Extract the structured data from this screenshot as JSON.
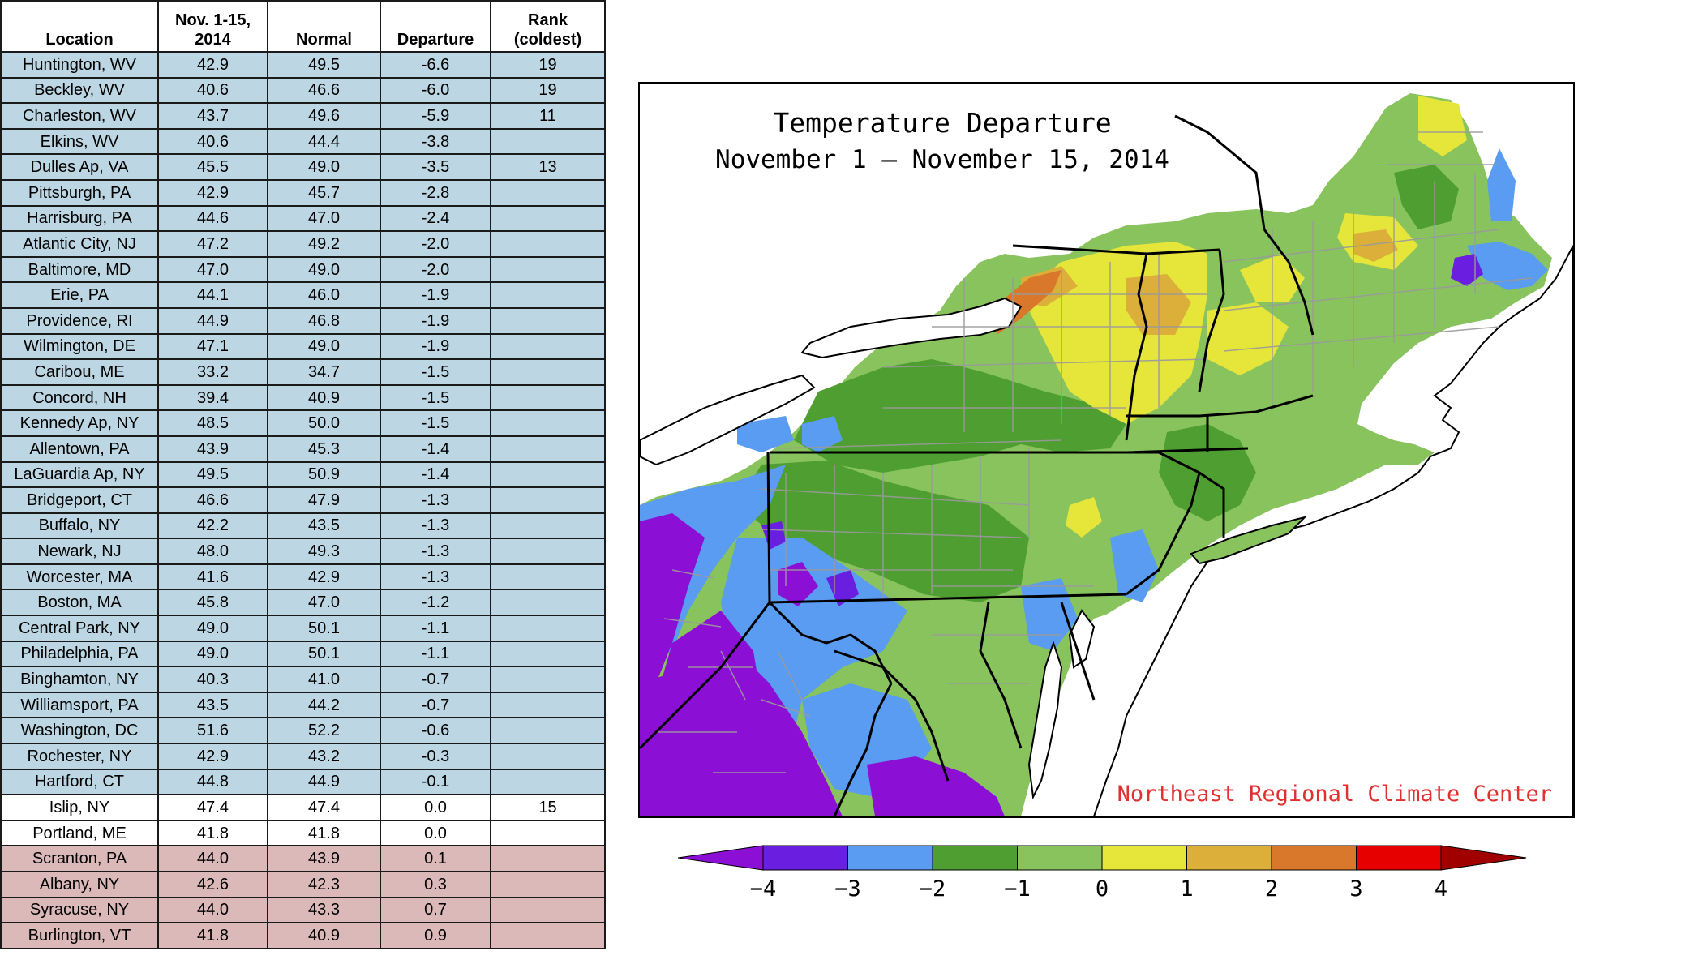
{
  "table": {
    "headers": {
      "location": "Location",
      "period_line1": "Nov. 1-15,",
      "period_line2": "2014",
      "normal": "Normal",
      "departure": "Departure",
      "rank_line1": "Rank",
      "rank_line2": "(coldest)"
    },
    "row_colors": {
      "cold": "#bcd7e3",
      "neutral": "#ffffff",
      "warm": "#dcb9b9"
    },
    "rows": [
      {
        "location": "Huntington, WV",
        "value": "42.9",
        "normal": "49.5",
        "departure": "-6.6",
        "rank": "19",
        "tone": "cold"
      },
      {
        "location": "Beckley, WV",
        "value": "40.6",
        "normal": "46.6",
        "departure": "-6.0",
        "rank": "19",
        "tone": "cold"
      },
      {
        "location": "Charleston, WV",
        "value": "43.7",
        "normal": "49.6",
        "departure": "-5.9",
        "rank": "11",
        "tone": "cold"
      },
      {
        "location": "Elkins, WV",
        "value": "40.6",
        "normal": "44.4",
        "departure": "-3.8",
        "rank": "",
        "tone": "cold"
      },
      {
        "location": "Dulles Ap, VA",
        "value": "45.5",
        "normal": "49.0",
        "departure": "-3.5",
        "rank": "13",
        "tone": "cold"
      },
      {
        "location": "Pittsburgh, PA",
        "value": "42.9",
        "normal": "45.7",
        "departure": "-2.8",
        "rank": "",
        "tone": "cold"
      },
      {
        "location": "Harrisburg, PA",
        "value": "44.6",
        "normal": "47.0",
        "departure": "-2.4",
        "rank": "",
        "tone": "cold"
      },
      {
        "location": "Atlantic City, NJ",
        "value": "47.2",
        "normal": "49.2",
        "departure": "-2.0",
        "rank": "",
        "tone": "cold"
      },
      {
        "location": "Baltimore, MD",
        "value": "47.0",
        "normal": "49.0",
        "departure": "-2.0",
        "rank": "",
        "tone": "cold"
      },
      {
        "location": "Erie, PA",
        "value": "44.1",
        "normal": "46.0",
        "departure": "-1.9",
        "rank": "",
        "tone": "cold"
      },
      {
        "location": "Providence, RI",
        "value": "44.9",
        "normal": "46.8",
        "departure": "-1.9",
        "rank": "",
        "tone": "cold"
      },
      {
        "location": "Wilmington, DE",
        "value": "47.1",
        "normal": "49.0",
        "departure": "-1.9",
        "rank": "",
        "tone": "cold"
      },
      {
        "location": "Caribou, ME",
        "value": "33.2",
        "normal": "34.7",
        "departure": "-1.5",
        "rank": "",
        "tone": "cold"
      },
      {
        "location": "Concord, NH",
        "value": "39.4",
        "normal": "40.9",
        "departure": "-1.5",
        "rank": "",
        "tone": "cold"
      },
      {
        "location": "Kennedy Ap, NY",
        "value": "48.5",
        "normal": "50.0",
        "departure": "-1.5",
        "rank": "",
        "tone": "cold"
      },
      {
        "location": "Allentown, PA",
        "value": "43.9",
        "normal": "45.3",
        "departure": "-1.4",
        "rank": "",
        "tone": "cold"
      },
      {
        "location": "LaGuardia Ap, NY",
        "value": "49.5",
        "normal": "50.9",
        "departure": "-1.4",
        "rank": "",
        "tone": "cold"
      },
      {
        "location": "Bridgeport, CT",
        "value": "46.6",
        "normal": "47.9",
        "departure": "-1.3",
        "rank": "",
        "tone": "cold"
      },
      {
        "location": "Buffalo, NY",
        "value": "42.2",
        "normal": "43.5",
        "departure": "-1.3",
        "rank": "",
        "tone": "cold"
      },
      {
        "location": "Newark, NJ",
        "value": "48.0",
        "normal": "49.3",
        "departure": "-1.3",
        "rank": "",
        "tone": "cold"
      },
      {
        "location": "Worcester, MA",
        "value": "41.6",
        "normal": "42.9",
        "departure": "-1.3",
        "rank": "",
        "tone": "cold"
      },
      {
        "location": "Boston, MA",
        "value": "45.8",
        "normal": "47.0",
        "departure": "-1.2",
        "rank": "",
        "tone": "cold"
      },
      {
        "location": "Central Park, NY",
        "value": "49.0",
        "normal": "50.1",
        "departure": "-1.1",
        "rank": "",
        "tone": "cold"
      },
      {
        "location": "Philadelphia, PA",
        "value": "49.0",
        "normal": "50.1",
        "departure": "-1.1",
        "rank": "",
        "tone": "cold"
      },
      {
        "location": "Binghamton, NY",
        "value": "40.3",
        "normal": "41.0",
        "departure": "-0.7",
        "rank": "",
        "tone": "cold"
      },
      {
        "location": "Williamsport, PA",
        "value": "43.5",
        "normal": "44.2",
        "departure": "-0.7",
        "rank": "",
        "tone": "cold"
      },
      {
        "location": "Washington, DC",
        "value": "51.6",
        "normal": "52.2",
        "departure": "-0.6",
        "rank": "",
        "tone": "cold"
      },
      {
        "location": "Rochester, NY",
        "value": "42.9",
        "normal": "43.2",
        "departure": "-0.3",
        "rank": "",
        "tone": "cold"
      },
      {
        "location": "Hartford, CT",
        "value": "44.8",
        "normal": "44.9",
        "departure": "-0.1",
        "rank": "",
        "tone": "cold"
      },
      {
        "location": "Islip, NY",
        "value": "47.4",
        "normal": "47.4",
        "departure": "0.0",
        "rank": "15",
        "tone": "neutral"
      },
      {
        "location": "Portland, ME",
        "value": "41.8",
        "normal": "41.8",
        "departure": "0.0",
        "rank": "",
        "tone": "neutral"
      },
      {
        "location": "Scranton, PA",
        "value": "44.0",
        "normal": "43.9",
        "departure": "0.1",
        "rank": "",
        "tone": "warm"
      },
      {
        "location": "Albany, NY",
        "value": "42.6",
        "normal": "42.3",
        "departure": "0.3",
        "rank": "",
        "tone": "warm"
      },
      {
        "location": "Syracuse, NY",
        "value": "44.0",
        "normal": "43.3",
        "departure": "0.7",
        "rank": "",
        "tone": "warm"
      },
      {
        "location": "Burlington, VT",
        "value": "41.8",
        "normal": "40.9",
        "departure": "0.9",
        "rank": "",
        "tone": "warm"
      }
    ]
  },
  "map": {
    "title": "Temperature Departure",
    "subtitle": "November 1 — November 15, 2014",
    "credit": "Northeast Regional Climate Center",
    "colors": {
      "lt_neg4": "#8c0fd6",
      "neg4_neg3": "#6a1ee0",
      "neg3_neg2": "#5a9cf2",
      "neg2_neg1": "#4e9e31",
      "neg1_0": "#88c35e",
      "zero_1": "#e6e63a",
      "one_2": "#dcae3a",
      "two_3": "#d9782a",
      "three_4": "#e60000",
      "gt_4": "#a00000",
      "water": "#ffffff",
      "county_lines": "#9a9a9a",
      "state_lines": "#000000"
    }
  },
  "legend": {
    "ticks": [
      "−4",
      "−3",
      "−2",
      "−1",
      "0",
      "1",
      "2",
      "3",
      "4"
    ],
    "bins": [
      "#8c0fd6",
      "#6a1ee0",
      "#5a9cf2",
      "#4e9e31",
      "#88c35e",
      "#e6e63a",
      "#dcae3a",
      "#d9782a",
      "#e60000",
      "#a00000"
    ]
  }
}
